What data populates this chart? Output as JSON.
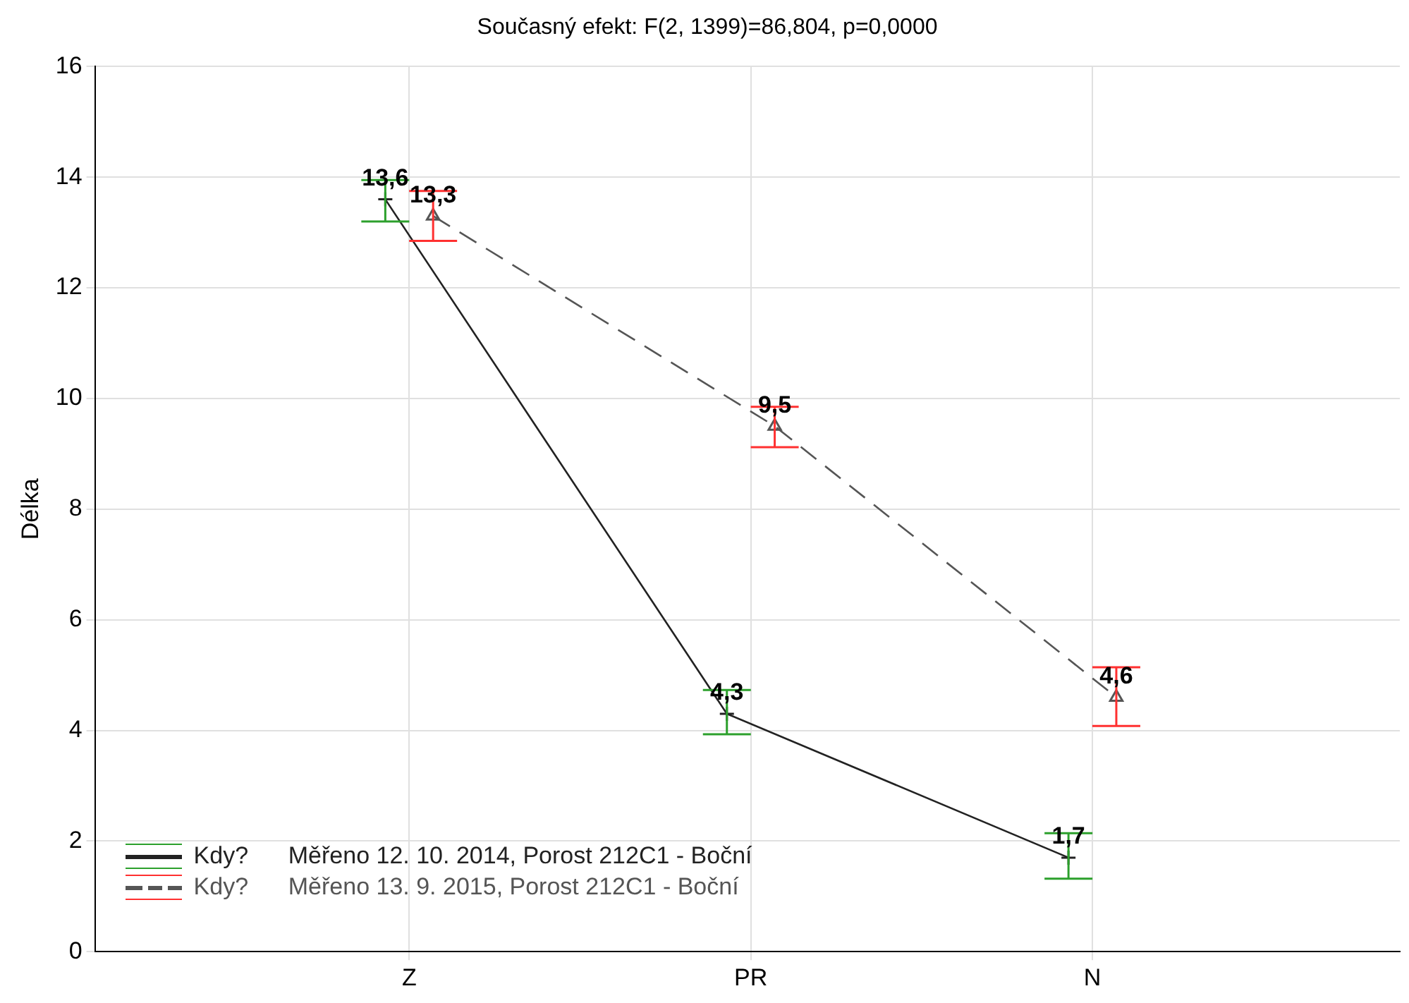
{
  "chart_data": {
    "type": "line",
    "title": "Současný efekt: F(2, 1399)=86,804, p=0,0000",
    "ylabel": "Délka",
    "categories": [
      "Z",
      "PR",
      "N"
    ],
    "series": [
      {
        "name": "Kdy?      Měřeno 12. 10. 2014, Porost 212C1 - Boční",
        "color": "#222222",
        "marker": "cross",
        "line_style": "solid",
        "values": [
          13.6,
          4.3,
          1.7
        ],
        "value_labels": [
          "13,6",
          "4,3",
          "1,7"
        ],
        "errors": [
          [
            13.2,
            13.95
          ],
          [
            3.93,
            4.73
          ],
          [
            1.32,
            2.14
          ]
        ]
      },
      {
        "name": "Kdy?      Měřeno 13. 9. 2015, Porost 212C1 - Boční",
        "color": "#555555",
        "marker": "triangle",
        "line_style": "dashed",
        "values": [
          13.3,
          9.5,
          4.6
        ],
        "value_labels": [
          "13,3",
          "9,5",
          "4,6"
        ],
        "errors": [
          [
            12.85,
            13.75
          ],
          [
            9.12,
            9.85
          ],
          [
            4.08,
            5.14
          ]
        ]
      }
    ],
    "ylim": [
      0,
      16
    ],
    "yticks": [
      0,
      2,
      4,
      6,
      8,
      10,
      12,
      14,
      16
    ],
    "grid": true,
    "legend": "bottom left"
  }
}
